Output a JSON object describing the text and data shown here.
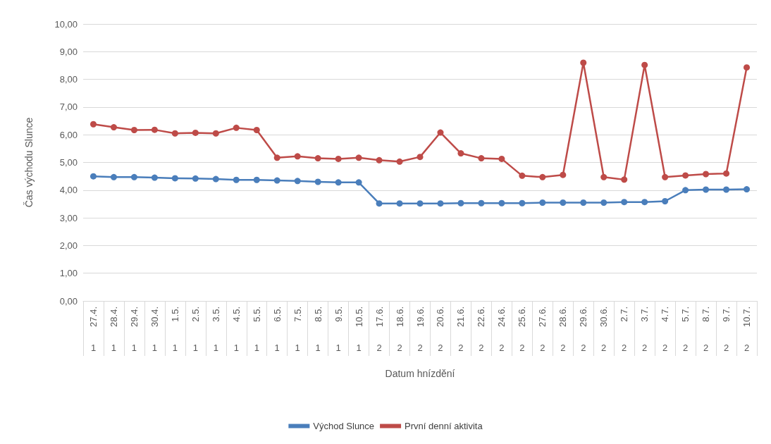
{
  "chart_data": {
    "type": "line",
    "xlabel": "Datum hnízdění",
    "ylabel": "Čas východu Slunce",
    "categories": [
      "27.4.",
      "28.4.",
      "29.4.",
      "30.4.",
      "1.5.",
      "2.5.",
      "3.5.",
      "4.5.",
      "5.5.",
      "6.5.",
      "7.5.",
      "8.5.",
      "9.5.",
      "10.5.",
      "17.6.",
      "18.6.",
      "19.6.",
      "20.6.",
      "21.6.",
      "22.6.",
      "24.6.",
      "25.6.",
      "27.6.",
      "28.6.",
      "29.6.",
      "30.6.",
      "2.7.",
      "3.7.",
      "4.7.",
      "5.7.",
      "8.7.",
      "9.7.",
      "10.7."
    ],
    "annotations": [
      "1",
      "1",
      "1",
      "1",
      "1",
      "1",
      "1",
      "1",
      "1",
      "1",
      "1",
      "1",
      "1",
      "1",
      "2",
      "2",
      "2",
      "2",
      "2",
      "2",
      "2",
      "2",
      "2",
      "2",
      "2",
      "2",
      "2",
      "2",
      "2",
      "2",
      "2",
      "2",
      "2"
    ],
    "series": [
      {
        "name": "Východ Slunce",
        "color": "#4a7ebb",
        "values": [
          4.5,
          4.47,
          4.47,
          4.45,
          4.43,
          4.42,
          4.4,
          4.37,
          4.37,
          4.35,
          4.33,
          4.3,
          4.28,
          4.28,
          3.52,
          3.52,
          3.52,
          3.52,
          3.53,
          3.53,
          3.53,
          3.53,
          3.55,
          3.55,
          3.55,
          3.55,
          3.57,
          3.57,
          3.6,
          4.0,
          4.02,
          4.02,
          4.03
        ]
      },
      {
        "name": "První denní aktivita",
        "color": "#be4b48",
        "values": [
          6.38,
          6.27,
          6.17,
          6.18,
          6.05,
          6.07,
          6.05,
          6.25,
          6.17,
          5.17,
          5.22,
          5.15,
          5.13,
          5.17,
          5.08,
          5.03,
          5.2,
          6.08,
          5.33,
          5.15,
          5.13,
          4.52,
          4.47,
          4.55,
          8.6,
          4.47,
          4.38,
          8.52,
          4.47,
          4.53,
          4.58,
          4.6,
          8.43
        ]
      }
    ],
    "ylim": [
      0,
      10
    ],
    "yticks": [
      {
        "value": 0,
        "label": "0,00"
      },
      {
        "value": 1,
        "label": "1,00"
      },
      {
        "value": 2,
        "label": "2,00"
      },
      {
        "value": 3,
        "label": "3,00"
      },
      {
        "value": 4,
        "label": "4,00"
      },
      {
        "value": 5,
        "label": "5,00"
      },
      {
        "value": 6,
        "label": "6,00"
      },
      {
        "value": 7,
        "label": "7,00"
      },
      {
        "value": 8,
        "label": "8,00"
      },
      {
        "value": 9,
        "label": "9,00"
      },
      {
        "value": 10,
        "label": "10,00"
      }
    ],
    "grid": "y",
    "legend": "bottom",
    "marker": "circle",
    "line_style": "solid"
  }
}
